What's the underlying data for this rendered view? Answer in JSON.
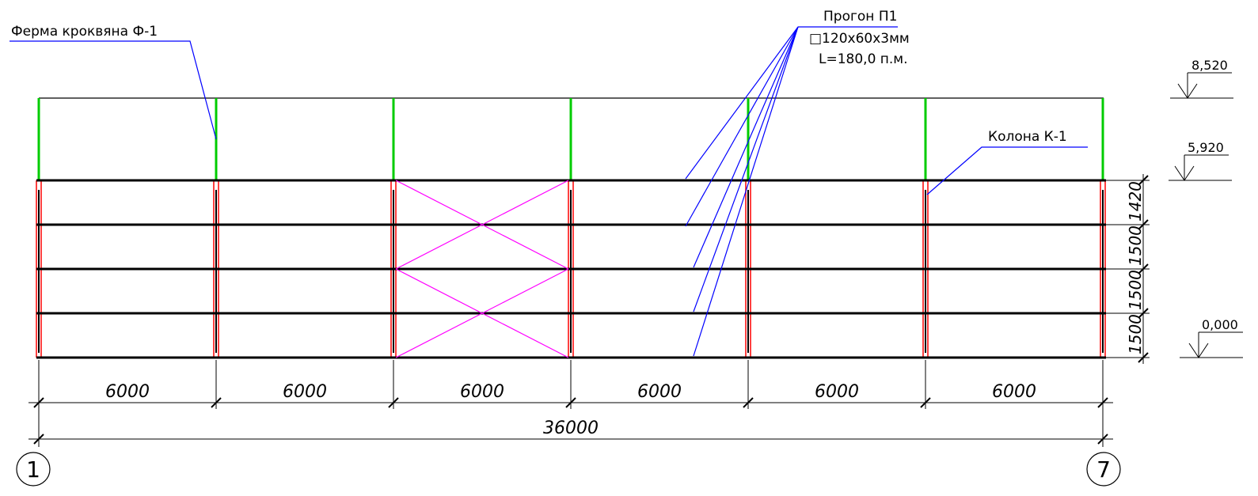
{
  "labels": {
    "truss": "Ферма кроквяна Ф-1",
    "purlin_title": "Прогон П1",
    "purlin_section": "□120х60х3мм",
    "purlin_length": "L=180,0 п.м.",
    "column": "Колона К-1"
  },
  "levels": [
    "8,520",
    "5,920",
    "0,000"
  ],
  "bay_dims": [
    "6000",
    "6000",
    "6000",
    "6000",
    "6000",
    "6000"
  ],
  "total_dim": "36000",
  "vertical_dims": [
    "1420",
    "1500",
    "1500",
    "1500"
  ],
  "axes": [
    "1",
    "7"
  ],
  "colors": {
    "truss": "#00cc00",
    "column": "#ff0000",
    "bracing": "#ff00ff",
    "leader": "#0000ff",
    "line": "#000000"
  }
}
